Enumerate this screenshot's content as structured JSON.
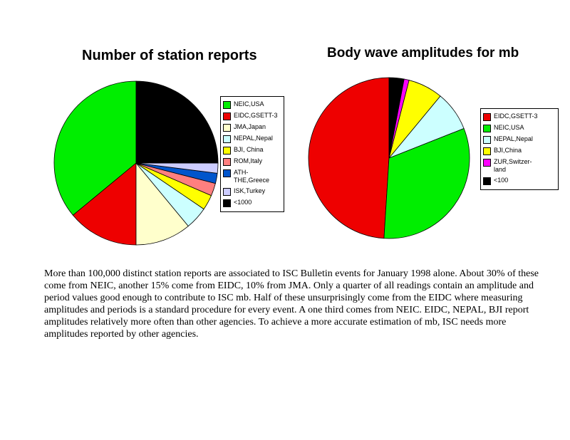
{
  "chart_data": [
    {
      "type": "pie",
      "title": "Number of station reports",
      "legend_position": "right",
      "slices": [
        {
          "label": "NEIC,USA",
          "value": 36,
          "color": "#00ee00"
        },
        {
          "label": "EIDC,GSETT-3",
          "value": 14,
          "color": "#ee0000"
        },
        {
          "label": "JMA,Japan",
          "value": 11,
          "color": "#ffffcc"
        },
        {
          "label": "NEPAL,Nepal",
          "value": 4.5,
          "color": "#ccffff"
        },
        {
          "label": "BJI, China",
          "value": 3,
          "color": "#ffff00"
        },
        {
          "label": "ROM,Italy",
          "value": 2.5,
          "color": "#ff7f7f"
        },
        {
          "label": "ATH-\nTHE,Greece",
          "value": 2,
          "color": "#0055cc"
        },
        {
          "label": "ISK,Turkey",
          "value": 2,
          "color": "#ccccff"
        },
        {
          "label": "<1000",
          "value": 25,
          "color": "#000000"
        }
      ]
    },
    {
      "type": "pie",
      "title": "Body wave amplitudes for mb",
      "legend_position": "right",
      "slices": [
        {
          "label": "EIDC,GSETT-3",
          "value": 49,
          "color": "#ee0000"
        },
        {
          "label": "NEIC,USA",
          "value": 32,
          "color": "#00ee00"
        },
        {
          "label": "NEPAL,Nepal",
          "value": 8,
          "color": "#ccffff"
        },
        {
          "label": "BJI,China",
          "value": 7,
          "color": "#ffff00"
        },
        {
          "label": "ZUR,Switzer-\nland",
          "value": 1,
          "color": "#ff00ff"
        },
        {
          "label": "<100",
          "value": 3,
          "color": "#000000"
        }
      ]
    }
  ],
  "caption": "More than 100,000 distinct station reports are associated to ISC Bulletin events for January 1998 alone. About 30% of these come from NEIC, another 15% come from EIDC, 10% from JMA. Only a quarter of all readings contain an amplitude and period values good enough to contribute to ISC mb. Half of these unsurprisingly come from the EIDC where measuring amplitudes and periods is a standard procedure for every event. A one third comes from NEIC. EIDC, NEPAL, BJI report amplitudes relatively more often than other agencies. To achieve a more accurate estimation of mb, ISC needs more amplitudes reported by other agencies."
}
